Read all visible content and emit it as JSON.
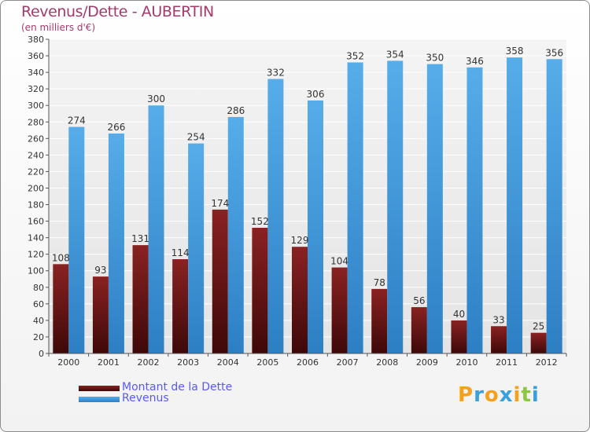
{
  "chart_data": {
    "type": "bar",
    "title": "Revenus/Dette - AUBERTIN",
    "subtitle": "(en milliers d'€)",
    "categories": [
      "2000",
      "2001",
      "2002",
      "2003",
      "2004",
      "2005",
      "2006",
      "2007",
      "2008",
      "2009",
      "2010",
      "2011",
      "2012"
    ],
    "series": [
      {
        "name": "Montant de la Dette",
        "values": [
          108,
          93,
          131,
          114,
          174,
          152,
          129,
          104,
          78,
          56,
          40,
          33,
          25
        ],
        "color": "#7a1c1c"
      },
      {
        "name": "Revenus",
        "values": [
          274,
          266,
          300,
          254,
          286,
          332,
          306,
          352,
          354,
          350,
          346,
          358,
          356
        ],
        "color": "#4da3e6"
      }
    ],
    "ylim": [
      0,
      380
    ],
    "yticks": [
      0,
      20,
      40,
      60,
      80,
      100,
      120,
      140,
      160,
      180,
      200,
      220,
      240,
      260,
      280,
      300,
      320,
      340,
      360,
      380
    ],
    "xlabel": "",
    "ylabel": "",
    "grid": true,
    "legend": "bottom-left"
  },
  "brand": {
    "letters": [
      "P",
      "r",
      "o",
      "x",
      "i",
      "t",
      "i"
    ],
    "colors": [
      "#f4a11d",
      "#3aa0d9",
      "#f4a11d",
      "#3aa0d9",
      "#f4a11d",
      "#8dc63f",
      "#3aa0d9"
    ]
  }
}
